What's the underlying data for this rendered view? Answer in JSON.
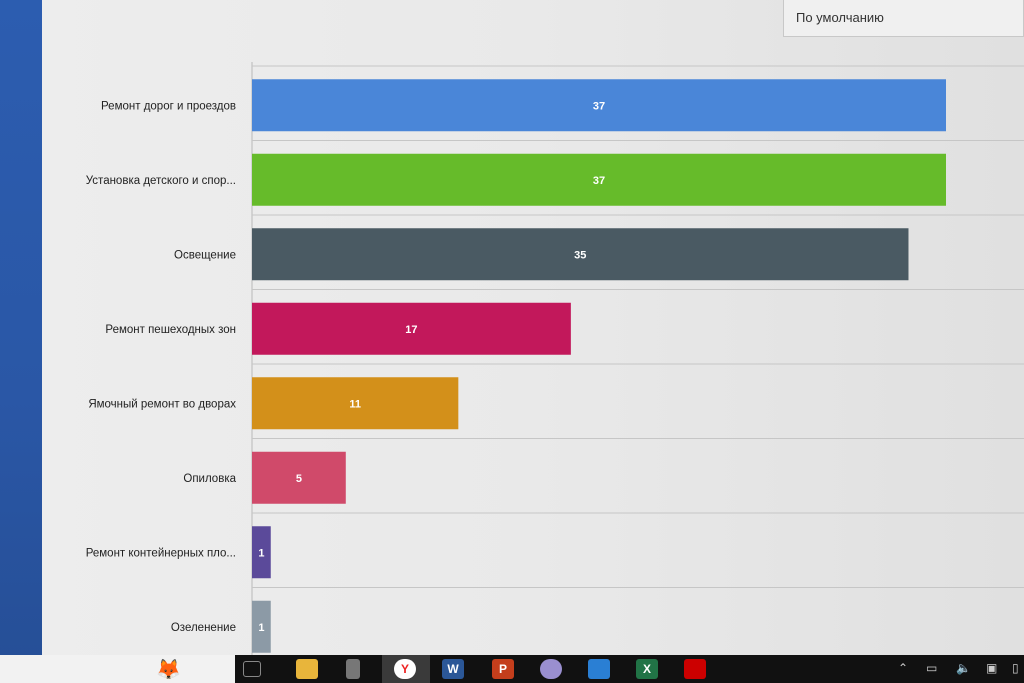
{
  "sort_select": {
    "value": "По умолчанию"
  },
  "chart_data": {
    "type": "bar",
    "orientation": "horizontal",
    "categories": [
      "Ремонт дорог и проездов",
      "Установка детского и спор...",
      "Освещение",
      "Ремонт пешеходных зон",
      "Ямочный ремонт во дворах",
      "Опиловка",
      "Ремонт контейнерных пло...",
      "Озеленение"
    ],
    "values": [
      37,
      37,
      35,
      17,
      11,
      5,
      1,
      1
    ],
    "value_labels": [
      "37",
      "37",
      "35",
      "17",
      "11",
      "5",
      "1",
      "1"
    ],
    "colors": [
      "#4a86d8",
      "#66bb2a",
      "#4a5a63",
      "#c2185b",
      "#d3901a",
      "#d04a6a",
      "#5b4a9a",
      "#8c9aa6"
    ],
    "xlim": [
      0,
      37
    ],
    "grid": true,
    "data_labels": "inside-bar"
  },
  "taskbar": {
    "icons": [
      "task-view-icon",
      "file-explorer-icon",
      "usb-icon",
      "yandex-browser-icon",
      "word-icon",
      "powerpoint-icon",
      "paint-icon",
      "mail-icon",
      "excel-icon",
      "acrobat-icon"
    ],
    "word_label": "W",
    "powerpoint_label": "P",
    "excel_label": "X",
    "yandex_label": "Y"
  }
}
